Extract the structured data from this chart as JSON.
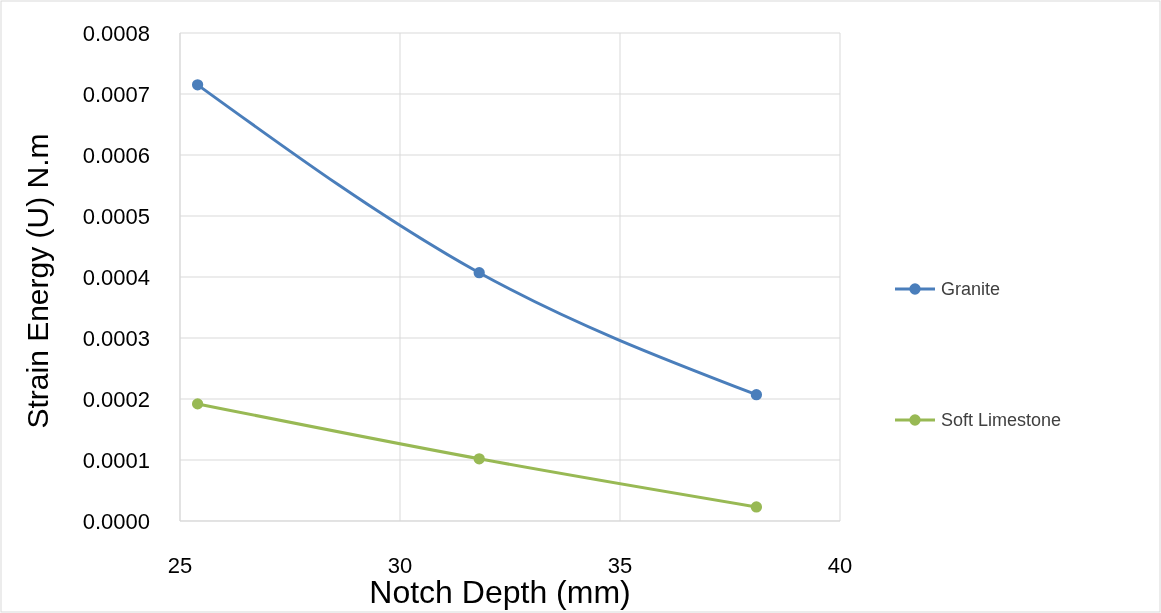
{
  "chart_data": {
    "type": "line",
    "xlabel": "Notch Depth (mm)",
    "ylabel": "Strain Energy (U) N.m",
    "xlim": [
      25,
      40
    ],
    "xticks": [
      25,
      30,
      35,
      40
    ],
    "ylim": [
      0,
      0.0008
    ],
    "yticks": [
      {
        "value": 0,
        "label": "0.0000"
      },
      {
        "value": 0.0001,
        "label": "0.0001"
      },
      {
        "value": 0.0002,
        "label": "0.0002"
      },
      {
        "value": 0.0003,
        "label": "0.0003"
      },
      {
        "value": 0.0004,
        "label": "0.0004"
      },
      {
        "value": 0.0005,
        "label": "0.0005"
      },
      {
        "value": 0.0006,
        "label": "0.0006"
      },
      {
        "value": 0.0007,
        "label": "0.0007"
      },
      {
        "value": 0.0008,
        "label": "0.0008"
      }
    ],
    "x": [
      25.4,
      31.8,
      38.1
    ],
    "series": [
      {
        "name": "Granite",
        "color": "#4a7ebb",
        "values": [
          0.000715,
          0.000407,
          0.000207
        ]
      },
      {
        "name": "Soft Limestone",
        "color": "#98b954",
        "values": [
          0.000192,
          0.000102,
          2.3e-05
        ]
      }
    ],
    "grid": true,
    "legend": "right",
    "marker": "circle",
    "line_style": "solid"
  }
}
